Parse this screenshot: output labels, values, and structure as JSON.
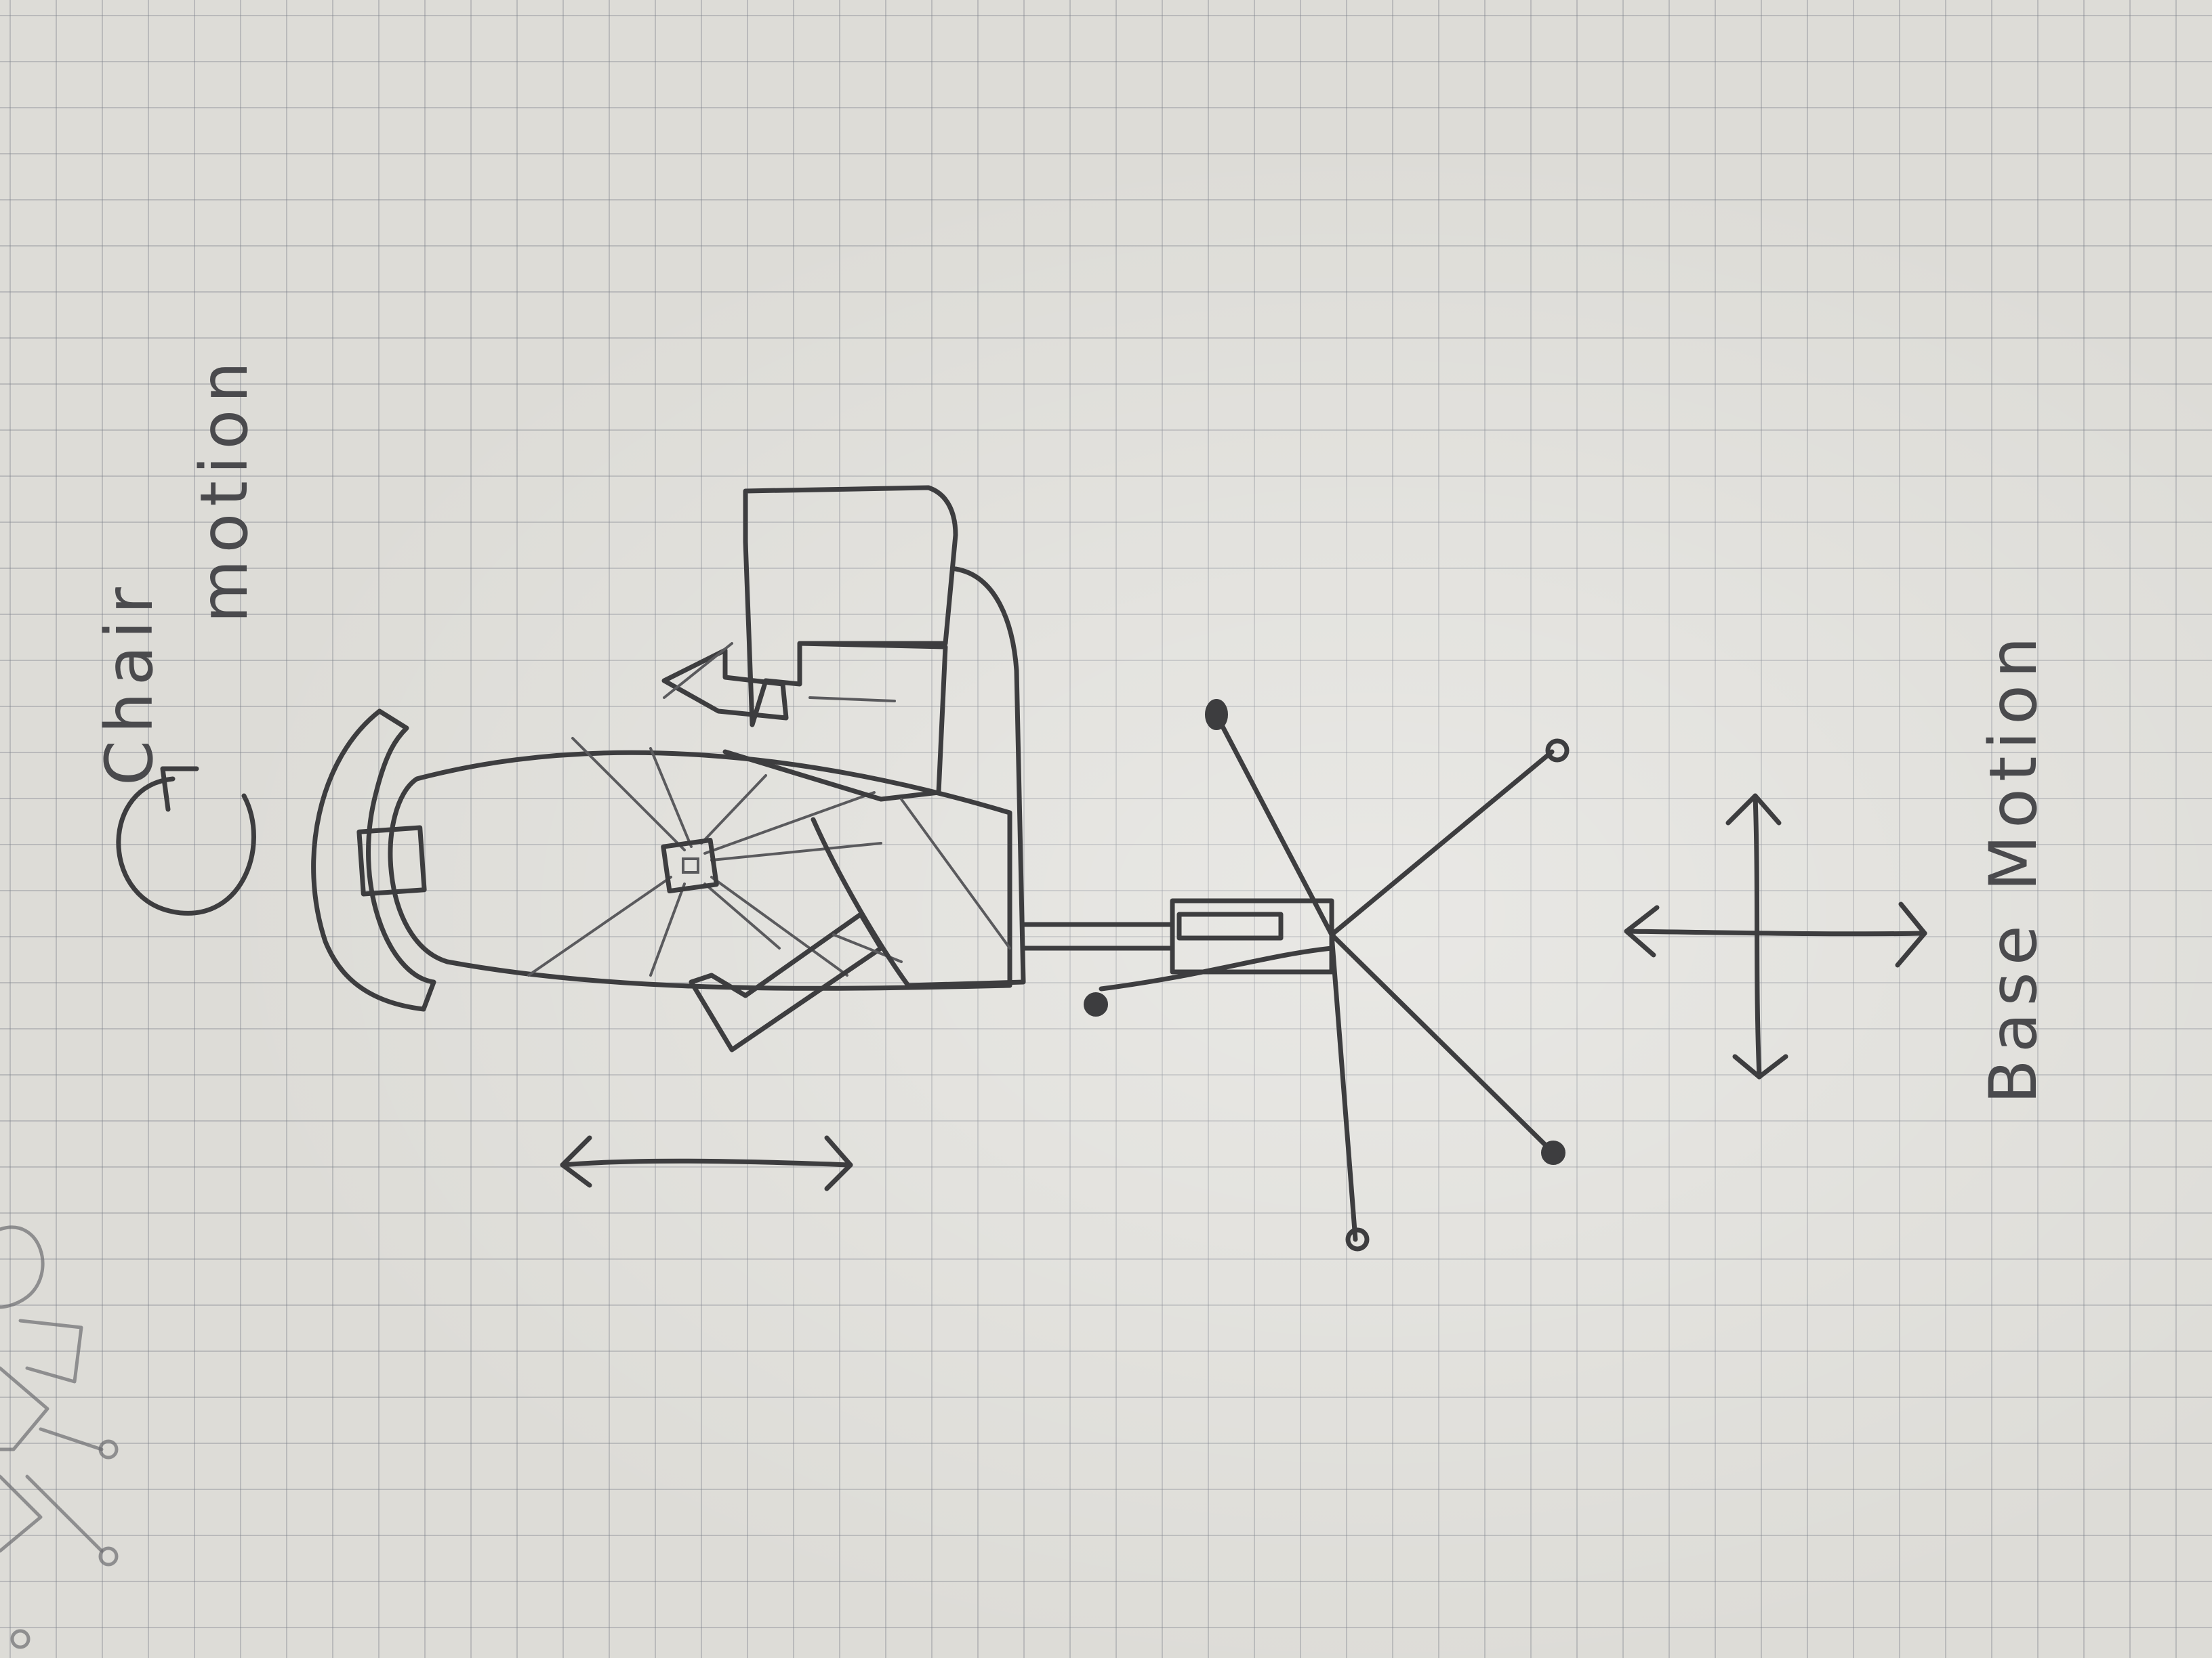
{
  "labels": {
    "chair_line1": "Chair",
    "chair_line2": "motion",
    "base_line1": "Base Motion"
  },
  "ink_color": "#3d3d3f",
  "paper_color": "#dddcd7",
  "grid_color": "#787d87"
}
